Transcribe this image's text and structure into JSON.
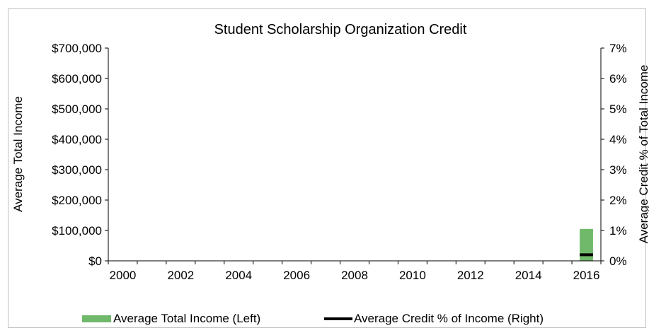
{
  "chart_data": {
    "type": "bar",
    "title": "Student Scholarship Organization Credit",
    "ylabel": "Average Total Income",
    "y2label": "Average Credit % of Total Income",
    "ylim": [
      0,
      700000
    ],
    "y2lim": [
      0,
      7
    ],
    "y_ticks": [
      0,
      100000,
      200000,
      300000,
      400000,
      500000,
      600000,
      700000
    ],
    "y_tick_labels": [
      "$0",
      "$100,000",
      "$200,000",
      "$300,000",
      "$400,000",
      "$500,000",
      "$600,000",
      "$700,000"
    ],
    "y2_tick_labels": [
      "0%",
      "1%",
      "2%",
      "3%",
      "4%",
      "5%",
      "6%",
      "7%"
    ],
    "x_tick_labels": [
      "2000",
      "2002",
      "2004",
      "2006",
      "2008",
      "2010",
      "2012",
      "2014",
      "2016"
    ],
    "categories": [
      "2000",
      "2001",
      "2002",
      "2003",
      "2004",
      "2005",
      "2006",
      "2007",
      "2008",
      "2009",
      "2010",
      "2011",
      "2012",
      "2013",
      "2014",
      "2015",
      "2016"
    ],
    "series": [
      {
        "name": "Average Total Income (Left)",
        "kind": "bar",
        "axis": "left",
        "color": "#70b96a",
        "values": [
          null,
          null,
          null,
          null,
          null,
          null,
          null,
          null,
          null,
          null,
          null,
          null,
          null,
          null,
          null,
          null,
          105000
        ]
      },
      {
        "name": "Average Credit % of Income (Right)",
        "kind": "line",
        "axis": "right",
        "color": "#000000",
        "values": [
          null,
          null,
          null,
          null,
          null,
          null,
          null,
          null,
          null,
          null,
          null,
          null,
          null,
          null,
          null,
          null,
          0.2
        ]
      }
    ],
    "grid": false,
    "legend_position": "bottom"
  }
}
